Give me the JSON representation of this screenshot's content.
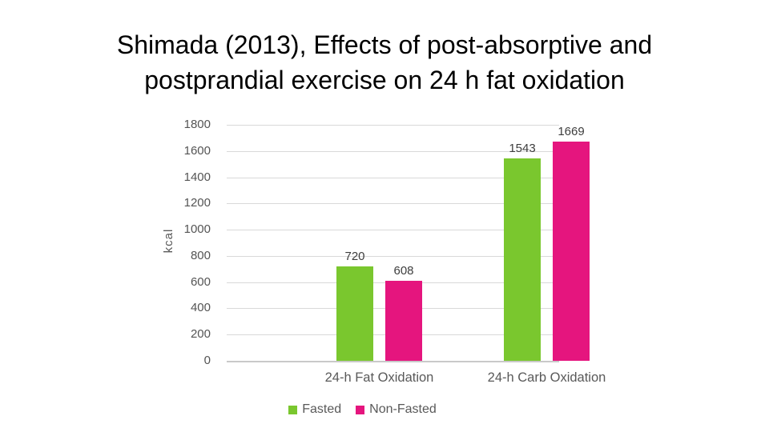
{
  "slide": {
    "background_color": "#ffffff",
    "title": {
      "text": "Shimada (2013), Effects of post-absorptive and postprandial exercise on 24 h fat oxidation",
      "lines": [
        "Shimada (2013), Effects of post-absorptive and",
        "postprandial exercise on 24 h fat oxidation"
      ],
      "color": "#000000"
    }
  },
  "chart_data": {
    "type": "bar",
    "title": "",
    "categories": [
      "24-h Fat Oxidation",
      "24-h Carb Oxidation"
    ],
    "series": [
      {
        "name": "Fasted",
        "color": "#7ac72e",
        "values": [
          720,
          1543
        ]
      },
      {
        "name": "Non-Fasted",
        "color": "#e5157e",
        "values": [
          608,
          1669
        ]
      }
    ],
    "data_labels": [
      "720",
      "608",
      "1543",
      "1669"
    ],
    "xlabel": "",
    "ylabel": "kcal",
    "ylim": [
      0,
      1800
    ],
    "ytick_interval": 200,
    "yticks": [
      1800,
      1600,
      1400,
      1200,
      1000,
      800,
      600,
      400,
      200,
      0
    ],
    "grid": true,
    "grid_color": "#d9d9d9",
    "axis_color": "#c9c9c9",
    "tick_label_color": "#545454",
    "data_label_color": "#3d3d3d",
    "category_label_color": "#595959",
    "legend": {
      "position": "bottom",
      "entries": [
        "Fasted",
        "Non-Fasted"
      ]
    }
  }
}
